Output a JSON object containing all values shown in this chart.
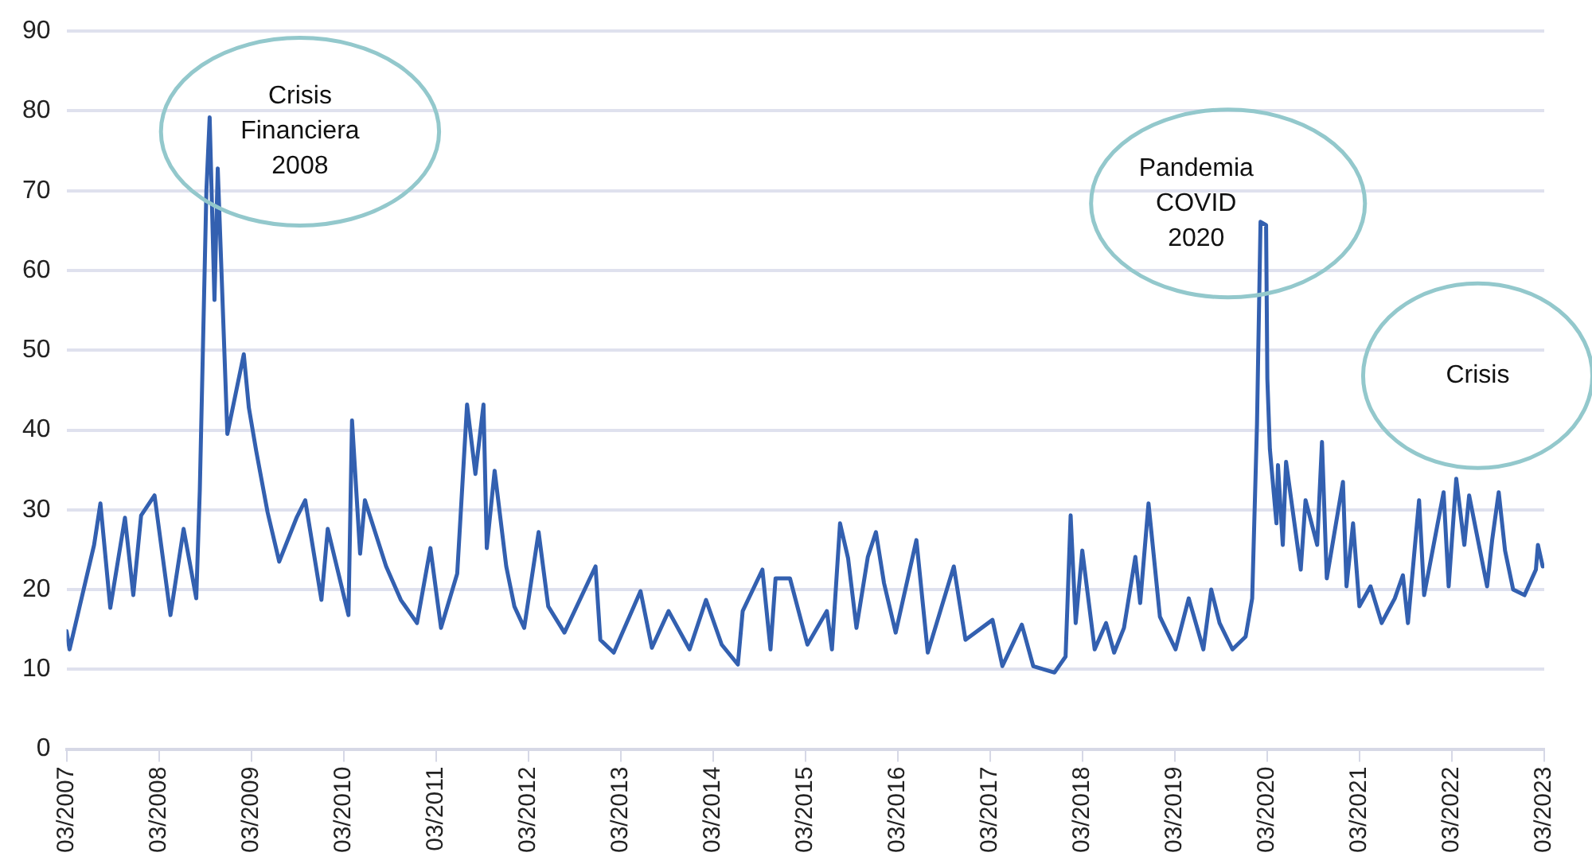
{
  "chart_data": {
    "type": "line",
    "x": [
      "2007-03-01",
      "2007-03-13",
      "2007-06-18",
      "2007-07-13",
      "2007-08-21",
      "2007-10-18",
      "2007-11-20",
      "2007-12-21",
      "2008-02-12",
      "2008-04-15",
      "2008-06-06",
      "2008-07-26",
      "2008-08-09",
      "2008-09-04",
      "2008-09-17",
      "2008-10-06",
      "2008-10-19",
      "2008-11-26",
      "2009-01-30",
      "2009-02-19",
      "2009-03-20",
      "2009-05-04",
      "2009-06-19",
      "2009-08-28",
      "2009-09-30",
      "2009-12-03",
      "2009-12-28",
      "2010-03-20",
      "2010-04-03",
      "2010-05-05",
      "2010-05-24",
      "2010-08-16",
      "2010-10-13",
      "2010-12-16",
      "2011-02-07",
      "2011-03-21",
      "2011-05-24",
      "2011-07-02",
      "2011-08-04",
      "2011-09-05",
      "2011-09-18",
      "2011-10-19",
      "2011-12-04",
      "2012-01-05",
      "2012-02-13",
      "2012-04-10",
      "2012-05-18",
      "2012-07-21",
      "2012-11-21",
      "2012-12-10",
      "2013-02-01",
      "2013-05-18",
      "2013-07-02",
      "2013-09-06",
      "2013-11-28",
      "2014-02-01",
      "2014-04-04",
      "2014-06-07",
      "2014-06-26",
      "2014-09-12",
      "2014-10-14",
      "2014-11-03",
      "2014-12-30",
      "2015-03-09",
      "2015-05-25",
      "2015-06-14",
      "2015-07-16",
      "2015-08-17",
      "2015-09-19",
      "2015-11-03",
      "2015-12-05",
      "2016-01-06",
      "2016-02-21",
      "2016-05-13",
      "2016-06-27",
      "2016-10-08",
      "2016-11-23",
      "2017-03-10",
      "2017-04-18",
      "2017-07-04",
      "2017-08-18",
      "2017-11-10",
      "2017-12-24",
      "2018-01-13",
      "2018-02-02",
      "2018-02-28",
      "2018-04-18",
      "2018-06-02",
      "2018-07-04",
      "2018-08-12",
      "2018-09-26",
      "2018-10-15",
      "2018-11-17",
      "2019-01-01",
      "2019-03-04",
      "2019-04-25",
      "2019-06-22",
      "2019-07-23",
      "2019-08-25",
      "2019-10-15",
      "2019-12-06",
      "2020-01-01",
      "2020-01-20",
      "2020-02-03",
      "2020-02-25",
      "2020-03-01",
      "2020-03-11",
      "2020-04-06",
      "2020-04-12",
      "2020-05-01",
      "2020-05-14",
      "2020-07-11",
      "2020-07-30",
      "2020-09-14",
      "2020-10-03",
      "2020-10-22",
      "2020-12-25",
      "2021-01-08",
      "2021-02-03",
      "2021-02-28",
      "2021-04-13",
      "2021-05-27",
      "2021-07-18",
      "2021-08-19",
      "2021-09-08",
      "2021-10-22",
      "2021-11-11",
      "2022-01-27",
      "2022-02-16",
      "2022-03-18",
      "2022-04-19",
      "2022-05-08",
      "2022-07-18",
      "2022-08-07",
      "2022-09-02",
      "2022-09-27",
      "2022-10-29",
      "2022-12-13",
      "2023-01-27",
      "2023-02-04",
      "2023-02-23"
    ],
    "series": [
      {
        "color": "#3360b0",
        "values": [
          14.8,
          12.5,
          25.6,
          30.8,
          17.7,
          29,
          19.3,
          29.3,
          31.8,
          16.8,
          27.6,
          18.9,
          32.4,
          69.9,
          79.2,
          56.3,
          72.8,
          39.5,
          49.5,
          42.8,
          37.4,
          29.7,
          23.5,
          29.1,
          31.2,
          18.7,
          27.6,
          16.8,
          41.2,
          24.5,
          31.2,
          22.9,
          18.7,
          15.8,
          25.2,
          15.2,
          22,
          43.2,
          34.5,
          43.2,
          25.2,
          34.9,
          22.9,
          17.9,
          15.2,
          27.2,
          17.9,
          14.6,
          22.9,
          13.7,
          12.1,
          19.8,
          12.7,
          17.3,
          12.5,
          18.7,
          13.1,
          10.6,
          17.3,
          22.5,
          12.5,
          21.4,
          21.4,
          13.1,
          17.3,
          12.5,
          28.3,
          23.9,
          15.2,
          24.1,
          27.2,
          20.8,
          14.6,
          26.2,
          12.1,
          22.9,
          13.7,
          16.2,
          10.4,
          15.6,
          10.4,
          9.6,
          11.6,
          29.3,
          15.8,
          24.9,
          12.5,
          15.8,
          12.1,
          15.2,
          24.1,
          18.3,
          30.8,
          16.6,
          12.5,
          18.9,
          12.5,
          20,
          15.8,
          12.5,
          14.1,
          18.9,
          40.7,
          66.1,
          65.7,
          46.4,
          37.6,
          28.3,
          35.6,
          25.6,
          36,
          22.5,
          31.2,
          25.6,
          38.5,
          21.4,
          33.5,
          20.4,
          28.3,
          17.9,
          20.4,
          15.8,
          18.9,
          21.8,
          15.8,
          31.2,
          19.3,
          32.2,
          20.4,
          33.9,
          25.6,
          31.8,
          20.4,
          26.2,
          32.2,
          24.9,
          20,
          19.3,
          22.5,
          25.6,
          22.9
        ]
      }
    ],
    "xlim": [
      "2007-03-01",
      "2023-03-01"
    ],
    "xticks": [
      {
        "value": "2007-03",
        "label": "03/2007"
      },
      {
        "value": "2008-03",
        "label": "03/2008"
      },
      {
        "value": "2009-03",
        "label": "03/2009"
      },
      {
        "value": "2010-03",
        "label": "03/2010"
      },
      {
        "value": "2011-03",
        "label": "03/2011"
      },
      {
        "value": "2012-03",
        "label": "03/2012"
      },
      {
        "value": "2013-03",
        "label": "03/2013"
      },
      {
        "value": "2014-03",
        "label": "03/2014"
      },
      {
        "value": "2015-03",
        "label": "03/2015"
      },
      {
        "value": "2016-03",
        "label": "03/2016"
      },
      {
        "value": "2017-03",
        "label": "03/2017"
      },
      {
        "value": "2018-03",
        "label": "03/2018"
      },
      {
        "value": "2019-03",
        "label": "03/2019"
      },
      {
        "value": "2020-03",
        "label": "03/2020"
      },
      {
        "value": "2021-03",
        "label": "03/2021"
      },
      {
        "value": "2022-03",
        "label": "03/2022"
      },
      {
        "value": "2023-03",
        "label": "03/2023"
      }
    ],
    "ylim": [
      0,
      90
    ],
    "yticks": [
      0,
      10,
      20,
      30,
      40,
      50,
      60,
      70,
      80,
      90
    ],
    "grid": "y",
    "legend": false,
    "marker": "none",
    "line_style": "solid",
    "annotations": [
      "Crisis\nFinanciera\n2008",
      "Pandemia\nCOVID\n2020",
      "Crisis"
    ]
  }
}
